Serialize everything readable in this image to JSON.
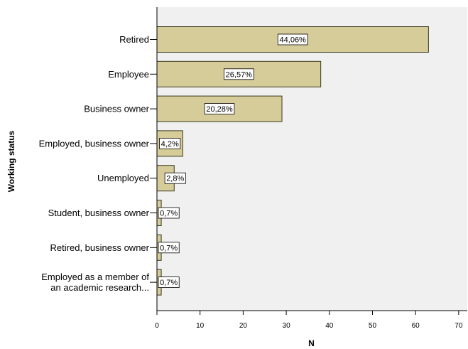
{
  "chart_data": {
    "type": "bar",
    "orientation": "horizontal",
    "categories": [
      [
        "Retired"
      ],
      [
        "Employee"
      ],
      [
        "Business owner"
      ],
      [
        "Employed, business owner"
      ],
      [
        "Unemployed"
      ],
      [
        "Student, business owner"
      ],
      [
        "Retired, business owner"
      ],
      [
        "Employed as a member of",
        "an academic research..."
      ]
    ],
    "values": [
      63,
      38,
      29,
      6,
      4,
      1,
      1,
      1
    ],
    "data_labels": [
      "44,06%",
      "26,57%",
      "20,28%",
      "4,2%",
      "2,8%",
      "0,7%",
      "0,7%",
      "0,7%"
    ],
    "xlabel": "N",
    "ylabel": "Working status",
    "xlim": [
      0,
      72
    ],
    "xticks": [
      0,
      10,
      20,
      30,
      40,
      50,
      60,
      70
    ],
    "grid": false,
    "colors": {
      "bar_fill": "#d6cc99",
      "bar_stroke": "#3a3a1f",
      "plot_bg": "#f0f0f0",
      "axis": "#000000",
      "label_bg": "#ffffff"
    }
  }
}
